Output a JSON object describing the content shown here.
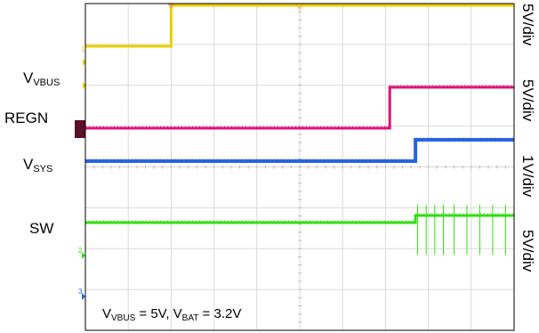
{
  "chart_data": {
    "type": "line",
    "title": "",
    "xlabel": "",
    "ylabel": "",
    "x_divisions": 10,
    "y_divisions": 8,
    "grid": true,
    "colors": {
      "vbus": "#e8d000",
      "regn": "#e0107a",
      "vsys": "#2a62e0",
      "sw": "#33dd11",
      "grid": "#d9d9d9",
      "trigger": "#f0a030"
    },
    "series": [
      {
        "name": "VBUS",
        "label_main": "V",
        "label_sub": "VBUS",
        "scale": "5V/div",
        "color": "#e8d000",
        "x": [
          0,
          2.0,
          2.0,
          10.0
        ],
        "y": [
          1.0,
          1.0,
          2.0,
          2.0
        ]
      },
      {
        "name": "REGN",
        "label_main": "REGN",
        "label_sub": "",
        "scale": "5V/div",
        "color": "#e0107a",
        "x": [
          0,
          7.1,
          7.1,
          10.0
        ],
        "y": [
          0.0,
          0.0,
          1.0,
          1.0
        ]
      },
      {
        "name": "VSYS",
        "label_main": "V",
        "label_sub": "SYS",
        "scale": "1V/div",
        "color": "#2a62e0",
        "x": [
          0,
          7.7,
          7.7,
          10.0
        ],
        "y": [
          0.0,
          0.0,
          0.6,
          0.6
        ]
      },
      {
        "name": "SW",
        "label_main": "SW",
        "label_sub": "",
        "scale": "5V/div",
        "color": "#33dd11",
        "x": [
          0,
          7.7,
          7.7,
          10.0
        ],
        "y": [
          0.0,
          0.0,
          0.2,
          0.2
        ],
        "pulse_x": [
          7.75,
          7.95,
          8.15,
          8.35,
          8.6,
          8.9,
          9.2,
          9.5,
          9.8
        ]
      }
    ],
    "annotation": {
      "parts": [
        {
          "main": "V",
          "sub": "VBUS"
        },
        {
          "main": " = 5V, ",
          "sub": ""
        },
        {
          "main": "V",
          "sub": "BAT"
        },
        {
          "main": " = 3.2V",
          "sub": ""
        }
      ]
    }
  }
}
